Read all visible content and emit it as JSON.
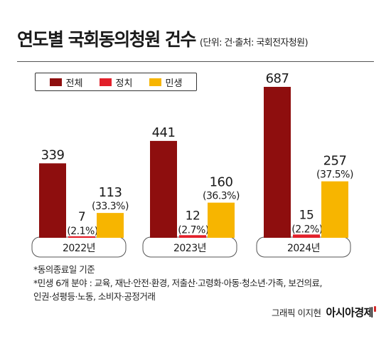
{
  "header": {
    "title": "연도별 국회동의청원 건수",
    "unit_source": "(단위: 건·출처: 국회전자청원)"
  },
  "colors": {
    "total": "#8e0e0e",
    "politics": "#e2202a",
    "livelihood": "#f7b500",
    "year_box_border": "#555555"
  },
  "legend": [
    {
      "label": "전체",
      "color": "#8e0e0e"
    },
    {
      "label": "정치",
      "color": "#e2202a"
    },
    {
      "label": "민생",
      "color": "#f7b500"
    }
  ],
  "chart_data": {
    "type": "bar",
    "title": "연도별 국회동의청원 건수",
    "unit": "(단위: 건·출처: 국회전자청원)",
    "categories": [
      "2022년",
      "2023년",
      "2024년"
    ],
    "series": [
      {
        "name": "전체",
        "values": [
          339,
          441,
          687
        ],
        "labels": [
          "339",
          "441",
          "687"
        ]
      },
      {
        "name": "정치",
        "values": [
          7,
          12,
          15
        ],
        "labels": [
          "7",
          "12",
          "15"
        ],
        "shares": [
          "(2.1%)",
          "(2.7%)",
          "(2.2%)"
        ]
      },
      {
        "name": "민생",
        "values": [
          113,
          160,
          257
        ],
        "labels": [
          "113",
          "160",
          "257"
        ],
        "shares": [
          "(33.3%)",
          "(36.3%)",
          "(37.5%)"
        ]
      }
    ],
    "ylim": [
      0,
      687
    ],
    "legend_position": "top-left",
    "grid": false
  },
  "notes": [
    "*동의종료일 기준",
    "*민생 6개 분야 : 교육, 재난·안전·환경, 저출산·고령화·아동·청소년·가족, 보건의료,",
    "인권·성평등·노동, 소비자·공정거래"
  ],
  "credit": {
    "text": "그래픽 이지현",
    "brand": "아시아경제"
  }
}
